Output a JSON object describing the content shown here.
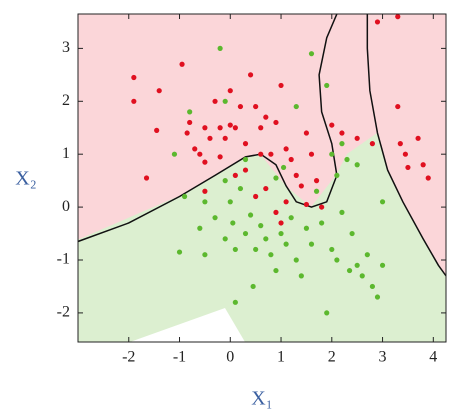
{
  "chart_data": {
    "type": "scatter",
    "x_label": "X₁",
    "y_label": "X₂",
    "xlim": [
      -3,
      4.25
    ],
    "ylim": [
      -2.55,
      3.65
    ],
    "xticks": [
      -2,
      -1,
      0,
      1,
      2,
      3,
      4
    ],
    "yticks": [
      -2,
      -1,
      0,
      1,
      2,
      3
    ],
    "series": [
      {
        "color": "#e01020",
        "x": [
          -1.9,
          -1.9,
          -1.4,
          -1.45,
          -1.65,
          -0.95,
          -0.85,
          -0.7,
          -0.6,
          -0.5,
          -0.5,
          -0.4,
          -0.3,
          -0.2,
          -0.1,
          0,
          0.1,
          0,
          0.2,
          0.3,
          0.3,
          0.4,
          0.5,
          0.6,
          0.7,
          0.8,
          0.9,
          1.0,
          1.1,
          1.2,
          1.3,
          1.4,
          1.5,
          1.6,
          1.7,
          1.8,
          1.5,
          2.0,
          2.2,
          2.5,
          2.8,
          3.3,
          3.35,
          3.45,
          3.5,
          3.7,
          3.8,
          3.9,
          3.3,
          2.9,
          -0.5,
          0.5,
          0.7,
          0.9,
          1.0,
          1.1,
          0.1,
          -0.2,
          -0.8,
          0.6
        ],
        "values": [
          2.45,
          2.0,
          2.2,
          1.45,
          0.55,
          2.7,
          1.4,
          1.1,
          1.0,
          0.85,
          1.5,
          1.3,
          2.0,
          1.5,
          1.3,
          1.55,
          1.5,
          2.2,
          1.9,
          1.2,
          0.7,
          2.5,
          1.9,
          1.5,
          1.7,
          1.0,
          1.6,
          2.3,
          1.1,
          0.9,
          0.6,
          0.4,
          1.4,
          1.0,
          0.5,
          0.0,
          0.05,
          1.55,
          1.4,
          1.3,
          1.2,
          1.9,
          1.2,
          1.0,
          0.75,
          1.3,
          0.8,
          0.55,
          3.6,
          3.5,
          0.3,
          0.2,
          0.35,
          -0.1,
          -0.3,
          0.1,
          0.6,
          0.95,
          1.6,
          1.0
        ]
      },
      {
        "color": "#5cb82e",
        "x": [
          -0.8,
          -0.9,
          -0.6,
          -0.5,
          -0.3,
          -0.1,
          -0.1,
          0,
          0.05,
          0.1,
          0.2,
          0.3,
          0.4,
          0.45,
          0.5,
          0.6,
          0.7,
          0.8,
          0.9,
          1.0,
          1.1,
          1.2,
          1.3,
          1.5,
          1.6,
          1.7,
          1.8,
          1.9,
          2.0,
          2.1,
          2.2,
          2.3,
          2.4,
          2.5,
          2.6,
          2.7,
          2.8,
          2.9,
          3.0,
          3.0,
          1.9,
          1.6,
          -1.1,
          -0.2,
          1.3,
          2.5,
          2.0,
          -0.1,
          0.1,
          -0.5,
          2.2,
          0.3,
          -1.0,
          1.4,
          2.35,
          0.9,
          1.05,
          2.1
        ],
        "values": [
          1.8,
          0.2,
          -0.4,
          0.1,
          -0.2,
          -0.6,
          0.5,
          0.1,
          -0.3,
          -0.8,
          0.35,
          -0.5,
          -0.15,
          -1.5,
          -0.8,
          -0.35,
          -0.6,
          -0.9,
          0.55,
          -0.5,
          -0.7,
          -0.2,
          -1.0,
          -0.4,
          -0.7,
          0.3,
          -0.3,
          -2.0,
          -0.8,
          -1.0,
          -0.1,
          0.9,
          -0.5,
          -1.1,
          -1.3,
          -0.9,
          -1.5,
          -1.7,
          0.1,
          -1.1,
          2.3,
          2.9,
          1.0,
          3.0,
          1.9,
          0.8,
          1.0,
          2.0,
          -1.8,
          -0.9,
          1.2,
          0.9,
          -0.85,
          -1.3,
          -1.2,
          -1.2,
          0.75,
          0.6
        ]
      }
    ],
    "lines": [
      {
        "color": "#111111",
        "x": [
          -3,
          -2,
          -1,
          -0.3,
          0.3,
          0.6,
          0.9,
          1.1,
          1.3,
          1.6,
          1.9,
          2.1,
          2.0,
          1.8,
          1.75,
          1.9,
          2.1
        ],
        "values": [
          -0.65,
          -0.3,
          0.2,
          0.6,
          0.95,
          1.0,
          0.8,
          0.4,
          0.1,
          0.0,
          0.1,
          0.6,
          1.2,
          1.8,
          2.5,
          3.2,
          3.65
        ]
      },
      {
        "color": "#111111",
        "x": [
          2.7,
          2.7,
          2.75,
          2.9,
          3.1,
          3.4,
          3.8,
          4.1,
          4.25
        ],
        "values": [
          3.65,
          3.0,
          2.2,
          1.4,
          0.7,
          0.1,
          -0.6,
          -1.1,
          -1.3
        ]
      }
    ]
  }
}
